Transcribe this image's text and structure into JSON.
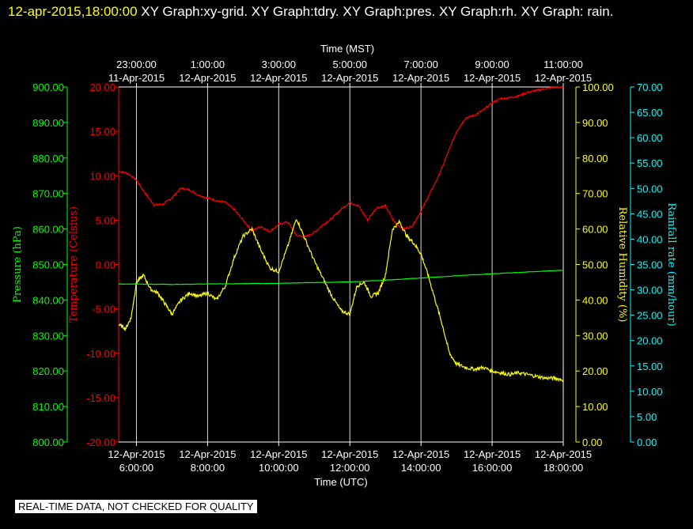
{
  "title": {
    "timestamp": "12-apr-2015,18:00:00",
    "text": "XY Graph:xy-grid.  XY Graph:tdry.  XY Graph:pres.  XY Graph:rh.  XY Graph: rain."
  },
  "footer_note": "REAL-TIME DATA, NOT CHECKED FOR QUALITY",
  "colors": {
    "background": "#000000",
    "temperature": "#ff0000",
    "pressure": "#00ff00",
    "humidity": "#ffff00",
    "rainfall": "#00ffff",
    "grid": "#ffffff"
  },
  "chart_data": {
    "type": "line",
    "x_range_utc_hours": [
      5.5,
      18.0
    ],
    "grid": true,
    "top_axis": {
      "title": "Time (MST)",
      "ticks": [
        {
          "line1": "23:00:00",
          "line2": "11-Apr-2015"
        },
        {
          "line1": "1:00:00",
          "line2": "12-Apr-2015"
        },
        {
          "line1": "3:00:00",
          "line2": "12-Apr-2015"
        },
        {
          "line1": "5:00:00",
          "line2": "12-Apr-2015"
        },
        {
          "line1": "7:00:00",
          "line2": "12-Apr-2015"
        },
        {
          "line1": "9:00:00",
          "line2": "12-Apr-2015"
        },
        {
          "line1": "11:00:00",
          "line2": "12-Apr-2015"
        }
      ]
    },
    "bottom_axis": {
      "title": "Time (UTC)",
      "ticks": [
        {
          "line1": "12-Apr-2015",
          "line2": "6:00:00"
        },
        {
          "line1": "12-Apr-2015",
          "line2": "8:00:00"
        },
        {
          "line1": "12-Apr-2015",
          "line2": "10:00:00"
        },
        {
          "line1": "12-Apr-2015",
          "line2": "12:00:00"
        },
        {
          "line1": "12-Apr-2015",
          "line2": "14:00:00"
        },
        {
          "line1": "12-Apr-2015",
          "line2": "16:00:00"
        },
        {
          "line1": "12-Apr-2015",
          "line2": "18:00:00"
        }
      ]
    },
    "axes": {
      "pressure": {
        "label": "Pressure (hPa)",
        "ylim": [
          800,
          900
        ],
        "ticks": [
          "800.00",
          "810.00",
          "820.00",
          "830.00",
          "840.00",
          "850.00",
          "860.00",
          "870.00",
          "880.00",
          "890.00",
          "900.00"
        ]
      },
      "temperature": {
        "label": "Temperature (Celsius)",
        "ylim": [
          -20,
          20
        ],
        "ticks": [
          "-20.00",
          "-15.00",
          "-10.00",
          "-5.00",
          "0.00",
          "5.00",
          "10.00",
          "15.00",
          "20.00"
        ]
      },
      "humidity": {
        "label": "Relative Humidity (%)",
        "ylim": [
          0,
          100
        ],
        "ticks": [
          "0.00",
          "10.00",
          "20.00",
          "30.00",
          "40.00",
          "50.00",
          "60.00",
          "70.00",
          "80.00",
          "90.00",
          "100.00"
        ]
      },
      "rainfall": {
        "label": "Rainfall rate (mm/hour)",
        "ylim": [
          0,
          70
        ],
        "ticks": [
          "0.00",
          "5.00",
          "10.00",
          "15.00",
          "20.00",
          "25.00",
          "30.00",
          "35.00",
          "40.00",
          "45.00",
          "50.00",
          "55.00",
          "60.00",
          "65.00",
          "70.00"
        ]
      }
    },
    "series": [
      {
        "key": "temperature",
        "axis": "temperature",
        "x": [
          5.5,
          5.75,
          6.0,
          6.25,
          6.5,
          6.75,
          7.0,
          7.25,
          7.5,
          7.75,
          8.0,
          8.25,
          8.5,
          8.75,
          9.0,
          9.25,
          9.5,
          9.75,
          10.0,
          10.25,
          10.5,
          10.75,
          11.0,
          11.25,
          11.5,
          11.75,
          12.0,
          12.25,
          12.5,
          12.75,
          13.0,
          13.25,
          13.5,
          13.75,
          14.0,
          14.25,
          14.5,
          14.75,
          15.0,
          15.25,
          15.5,
          15.75,
          16.0,
          16.25,
          16.5,
          16.75,
          17.0,
          17.25,
          17.5,
          17.75,
          18.0
        ],
        "values": [
          10.5,
          10.3,
          9.5,
          8.0,
          6.7,
          6.8,
          7.5,
          8.6,
          8.4,
          7.8,
          7.5,
          7.2,
          7.0,
          6.2,
          5.0,
          3.8,
          4.3,
          3.7,
          4.5,
          4.8,
          3.3,
          3.1,
          3.6,
          4.5,
          5.2,
          6.2,
          7.0,
          6.6,
          5.0,
          6.4,
          6.6,
          4.8,
          4.0,
          4.3,
          6.0,
          8.0,
          10.0,
          12.5,
          15.0,
          16.5,
          16.8,
          17.4,
          18.2,
          18.7,
          18.8,
          19.0,
          19.4,
          19.6,
          19.8,
          20.0,
          20.0
        ]
      },
      {
        "key": "humidity",
        "axis": "humidity",
        "x": [
          5.5,
          5.7,
          5.85,
          6.0,
          6.2,
          6.4,
          6.6,
          6.8,
          7.0,
          7.25,
          7.5,
          7.75,
          8.0,
          8.25,
          8.5,
          8.75,
          9.0,
          9.25,
          9.5,
          9.75,
          10.0,
          10.25,
          10.5,
          10.75,
          11.0,
          11.25,
          11.5,
          11.75,
          12.0,
          12.2,
          12.4,
          12.6,
          12.8,
          13.0,
          13.2,
          13.4,
          13.6,
          13.8,
          14.0,
          14.2,
          14.4,
          14.6,
          14.8,
          15.0,
          15.25,
          15.5,
          15.75,
          16.0,
          16.25,
          16.5,
          16.75,
          17.0,
          17.25,
          17.5,
          17.75,
          18.0
        ],
        "values": [
          33,
          32,
          35,
          45,
          47,
          43,
          42,
          39,
          36,
          40,
          42,
          41,
          42,
          40,
          44,
          52,
          58,
          60,
          54,
          49,
          48,
          55,
          63,
          57,
          51,
          46,
          41,
          37,
          36,
          44,
          45,
          41,
          42,
          47,
          60,
          62,
          58,
          56,
          53,
          47,
          40,
          33,
          25,
          22,
          21,
          20.5,
          21,
          20,
          19.5,
          19,
          19.5,
          19,
          18.5,
          18,
          18,
          17.5
        ]
      },
      {
        "key": "pressure",
        "axis": "pressure",
        "x": [
          5.5,
          6.0,
          7.0,
          8.0,
          9.0,
          10.0,
          11.0,
          12.0,
          13.0,
          14.0,
          15.0,
          16.0,
          17.0,
          18.0
        ],
        "values": [
          844.5,
          844.5,
          844.4,
          844.5,
          844.6,
          844.7,
          844.9,
          845.1,
          845.6,
          846.2,
          846.8,
          847.4,
          847.9,
          848.4
        ]
      },
      {
        "key": "rainfall",
        "axis": "rainfall",
        "x": [],
        "values": []
      }
    ]
  }
}
